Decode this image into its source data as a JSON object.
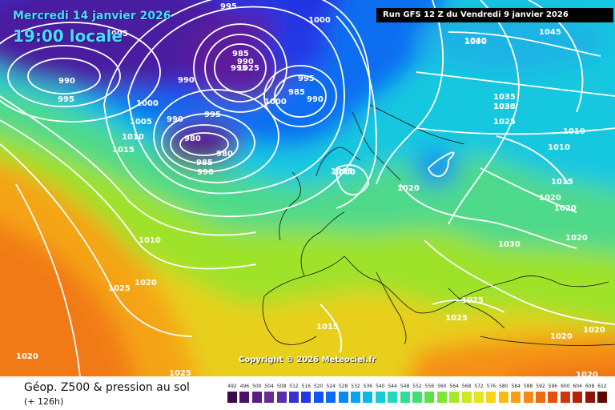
{
  "header": {
    "date": "Mercredi 14 janvier 2026",
    "local_time": "19:00 locale",
    "run": "Run GFS 12 Z du Vendredi 9 janvier 2026"
  },
  "footer": {
    "product": "Géop. Z500 & pression au sol",
    "lead_time": "(+ 126h)",
    "copyright": "Copyright © 2026 Meteociel.fr"
  },
  "legend": {
    "values": [
      "492",
      "496",
      "500",
      "504",
      "508",
      "512",
      "516",
      "520",
      "524",
      "528",
      "532",
      "536",
      "540",
      "544",
      "548",
      "552",
      "556",
      "560",
      "564",
      "568",
      "572",
      "576",
      "580",
      "584",
      "588",
      "592",
      "596",
      "600",
      "604",
      "608",
      "612"
    ],
    "colors": [
      "#3a0a4a",
      "#4d0f63",
      "#5e1a7c",
      "#6b2a94",
      "#5a2fb0",
      "#3b2fd0",
      "#2238e6",
      "#1453f0",
      "#0a6cf5",
      "#0a88f5",
      "#0aa2f2",
      "#0ab8e8",
      "#14cbd8",
      "#24d8bd",
      "#30dd98",
      "#3ee070",
      "#5ae24a",
      "#80e535",
      "#a8e82a",
      "#cbea24",
      "#e6e620",
      "#f5d51c",
      "#f7bb18",
      "#f8a014",
      "#f78612",
      "#f26a10",
      "#e8500e",
      "#cf360c",
      "#b3220a",
      "#8f1408",
      "#5e0804"
    ]
  },
  "map": {
    "isobars": [
      {
        "label": "995"
      },
      {
        "label": "1000"
      },
      {
        "label": "1005"
      },
      {
        "label": "990"
      },
      {
        "label": "995"
      },
      {
        "label": "1000"
      },
      {
        "label": "1005"
      },
      {
        "label": "1010"
      },
      {
        "label": "1015"
      },
      {
        "label": "990"
      },
      {
        "label": "995"
      },
      {
        "label": "990"
      },
      {
        "label": "980"
      },
      {
        "label": "985"
      },
      {
        "label": "990"
      },
      {
        "label": "980"
      },
      {
        "label": "985"
      },
      {
        "label": "990"
      },
      {
        "label": "995"
      },
      {
        "label": "1000"
      },
      {
        "label": "985"
      },
      {
        "label": "990"
      },
      {
        "label": "995"
      },
      {
        "label": "1000"
      },
      {
        "label": "1025"
      },
      {
        "label": "1030"
      },
      {
        "label": "1035"
      },
      {
        "label": "1040"
      },
      {
        "label": "1045"
      },
      {
        "label": "1035"
      },
      {
        "label": "1030"
      },
      {
        "label": "1025"
      },
      {
        "label": "1020"
      },
      {
        "label": "1010"
      },
      {
        "label": "1010"
      },
      {
        "label": "1015"
      },
      {
        "label": "1020"
      },
      {
        "label": "1020"
      },
      {
        "label": "1030"
      },
      {
        "label": "1020"
      },
      {
        "label": "1005"
      },
      {
        "label": "1010"
      },
      {
        "label": "1020"
      },
      {
        "label": "1025"
      },
      {
        "label": "1015"
      },
      {
        "label": "1025"
      },
      {
        "label": "1025"
      },
      {
        "label": "1020"
      },
      {
        "label": "1020"
      },
      {
        "label": "1020"
      },
      {
        "label": "1020"
      },
      {
        "label": "1025"
      }
    ]
  }
}
